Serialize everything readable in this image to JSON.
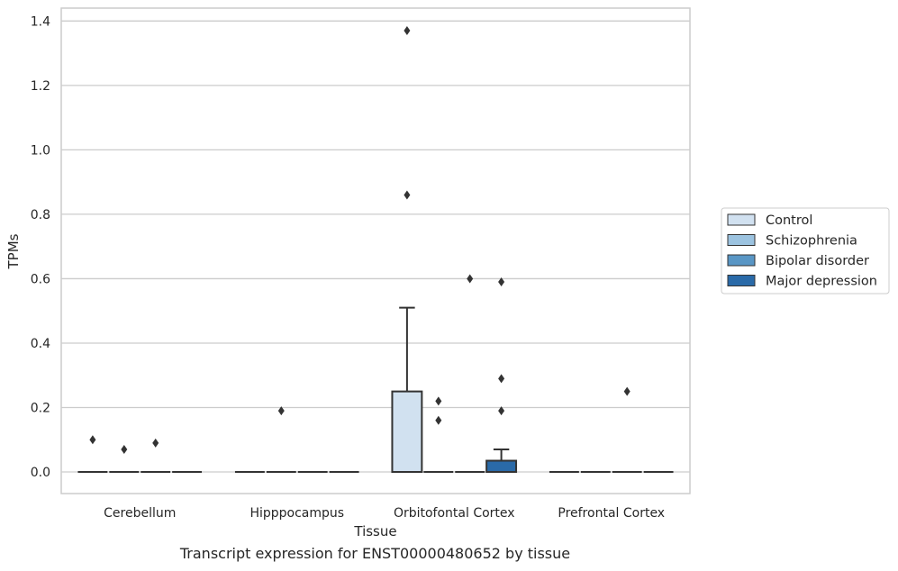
{
  "caption": "Transcript expression for ENST00000480652 by tissue",
  "chart_data": {
    "type": "box",
    "title": "",
    "xlabel": "Tissue",
    "ylabel": "TPMs",
    "ylim": [
      -0.067,
      1.44
    ],
    "yticks": [
      0.0,
      0.2,
      0.4,
      0.6,
      0.8,
      1.0,
      1.2,
      1.4
    ],
    "ytick_labels": [
      "0.0",
      "0.2",
      "0.4",
      "0.6",
      "0.8",
      "1.0",
      "1.2",
      "1.4"
    ],
    "grid": "horizontal",
    "legend_position": "right",
    "categories": [
      "Cerebellum",
      "Hipppocampus",
      "Orbitofontal Cortex",
      "Prefrontal Cortex"
    ],
    "series": [
      {
        "name": "Control",
        "color": "#d1e1f0",
        "boxes": [
          {
            "q1": 0,
            "median": 0,
            "q3": 0,
            "whisker_low": 0,
            "whisker_high": 0,
            "outliers": [
              0.1
            ]
          },
          {
            "q1": 0,
            "median": 0,
            "q3": 0,
            "whisker_low": 0,
            "whisker_high": 0,
            "outliers": []
          },
          {
            "q1": 0,
            "median": 0,
            "q3": 0.25,
            "whisker_low": 0,
            "whisker_high": 0.51,
            "outliers": [
              0.86,
              1.37
            ]
          },
          {
            "q1": 0,
            "median": 0,
            "q3": 0,
            "whisker_low": 0,
            "whisker_high": 0,
            "outliers": []
          }
        ]
      },
      {
        "name": "Schizophrenia",
        "color": "#9cc3e0",
        "boxes": [
          {
            "q1": 0,
            "median": 0,
            "q3": 0,
            "whisker_low": 0,
            "whisker_high": 0,
            "outliers": [
              0.07
            ]
          },
          {
            "q1": 0,
            "median": 0,
            "q3": 0,
            "whisker_low": 0,
            "whisker_high": 0,
            "outliers": [
              0.19
            ]
          },
          {
            "q1": 0,
            "median": 0,
            "q3": 0,
            "whisker_low": 0,
            "whisker_high": 0,
            "outliers": [
              0.16,
              0.22
            ]
          },
          {
            "q1": 0,
            "median": 0,
            "q3": 0,
            "whisker_low": 0,
            "whisker_high": 0,
            "outliers": []
          }
        ]
      },
      {
        "name": "Bipolar disorder",
        "color": "#5996c5",
        "boxes": [
          {
            "q1": 0,
            "median": 0,
            "q3": 0,
            "whisker_low": 0,
            "whisker_high": 0,
            "outliers": [
              0.09
            ]
          },
          {
            "q1": 0,
            "median": 0,
            "q3": 0,
            "whisker_low": 0,
            "whisker_high": 0,
            "outliers": []
          },
          {
            "q1": 0,
            "median": 0,
            "q3": 0,
            "whisker_low": 0,
            "whisker_high": 0,
            "outliers": [
              0.6
            ]
          },
          {
            "q1": 0,
            "median": 0,
            "q3": 0,
            "whisker_low": 0,
            "whisker_high": 0,
            "outliers": [
              0.25
            ]
          }
        ]
      },
      {
        "name": "Major depression",
        "color": "#2a6aa8",
        "boxes": [
          {
            "q1": 0,
            "median": 0,
            "q3": 0,
            "whisker_low": 0,
            "whisker_high": 0,
            "outliers": []
          },
          {
            "q1": 0,
            "median": 0,
            "q3": 0,
            "whisker_low": 0,
            "whisker_high": 0,
            "outliers": []
          },
          {
            "q1": 0,
            "median": 0,
            "q3": 0.035,
            "whisker_low": 0,
            "whisker_high": 0.07,
            "outliers": [
              0.19,
              0.29,
              0.59
            ]
          },
          {
            "q1": 0,
            "median": 0,
            "q3": 0,
            "whisker_low": 0,
            "whisker_high": 0,
            "outliers": []
          }
        ]
      }
    ]
  }
}
